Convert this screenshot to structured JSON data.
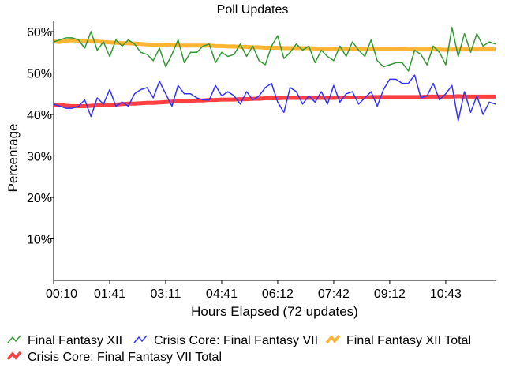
{
  "chart_data": {
    "type": "line",
    "title": "Poll Updates",
    "xlabel": "Hours Elapsed (72 updates)",
    "ylabel": "Percentage",
    "ylim": [
      0,
      65
    ],
    "yticks": [
      10,
      20,
      30,
      40,
      50,
      60
    ],
    "ytick_labels": [
      "10%",
      "20%",
      "30%",
      "40%",
      "50%",
      "60%"
    ],
    "xticks": [
      0,
      9,
      18,
      27,
      36,
      45,
      54,
      63
    ],
    "xtick_labels": [
      "00:10",
      "01:41",
      "03:11",
      "04:41",
      "06:12",
      "07:42",
      "09:12",
      "10:43"
    ],
    "n_points": 72,
    "legend_position": "bottom",
    "series": [
      {
        "name": "Final Fantasy XII",
        "color": "#339933",
        "width": 1.5,
        "values": [
          57.5,
          58,
          58.5,
          58.5,
          58,
          56,
          60,
          55.5,
          57.5,
          54,
          58,
          56.5,
          58,
          57,
          55,
          54.5,
          53,
          56,
          51.5,
          54.5,
          58,
          52.5,
          55,
          55,
          56.5,
          57,
          52.5,
          55,
          54,
          54.5,
          57,
          54,
          56.5,
          53,
          52,
          56.5,
          59,
          53.5,
          55,
          57,
          55.5,
          56.5,
          52.5,
          55.5,
          54,
          53,
          56.5,
          54,
          57.5,
          55.5,
          54,
          58,
          53,
          51.5,
          52,
          52.5,
          52.5,
          50.5,
          55.5,
          54.5,
          52,
          56.5,
          55,
          52,
          61,
          54,
          59.5,
          55,
          59.5,
          56.5,
          57.5,
          57
        ]
      },
      {
        "name": "Crisis Core: Final Fantasy VII",
        "color": "#3333ff",
        "width": 1.5,
        "values": [
          42.5,
          42,
          41.5,
          41.5,
          42,
          43.5,
          39.5,
          44,
          42.5,
          46,
          42,
          43,
          42,
          45,
          46,
          46.5,
          44,
          48,
          45,
          42,
          47,
          45,
          45,
          44,
          43.5,
          43.5,
          47,
          44.5,
          45.5,
          44.5,
          42.5,
          45.5,
          43.5,
          44.5,
          46.5,
          47.5,
          43,
          40.5,
          46.5,
          45.5,
          42.5,
          44.5,
          43,
          45.5,
          42.5,
          47,
          43,
          45,
          45.5,
          42.5,
          44,
          45.5,
          42,
          46,
          48.5,
          48.5,
          47.5,
          47.5,
          49.5,
          44,
          44.5,
          47.5,
          43.5,
          45,
          47,
          38.5,
          45.5,
          40.5,
          44.5,
          40,
          43,
          42.5
        ]
      },
      {
        "name": "Final Fantasy XII Total",
        "color": "#ffb433",
        "width": 5,
        "values": [
          57.6,
          57.5,
          57.8,
          57.9,
          57.8,
          57.7,
          57.6,
          57.6,
          57.5,
          57.4,
          57.3,
          57.2,
          57.2,
          57.1,
          57.0,
          56.9,
          56.8,
          56.8,
          56.7,
          56.7,
          56.6,
          56.6,
          56.6,
          56.6,
          56.6,
          56.6,
          56.5,
          56.5,
          56.4,
          56.4,
          56.3,
          56.3,
          56.2,
          56.2,
          56.1,
          56.1,
          56.1,
          56.0,
          56.0,
          56.0,
          56.0,
          56.0,
          55.9,
          55.9,
          55.9,
          55.9,
          55.9,
          55.9,
          55.9,
          55.9,
          55.8,
          55.8,
          55.8,
          55.8,
          55.8,
          55.8,
          55.8,
          55.7,
          55.7,
          55.7,
          55.7,
          55.7,
          55.7,
          55.6,
          55.7,
          55.7,
          55.7,
          55.7,
          55.7,
          55.7,
          55.7,
          55.7
        ]
      },
      {
        "name": "Crisis Core: Final Fantasy VII Total",
        "color": "#ff4040",
        "width": 5,
        "values": [
          42.3,
          42.4,
          42.1,
          42.0,
          42.0,
          42.0,
          42.1,
          42.2,
          42.3,
          42.3,
          42.4,
          42.5,
          42.6,
          42.6,
          42.7,
          42.8,
          42.8,
          42.9,
          43.0,
          43.1,
          43.2,
          43.3,
          43.3,
          43.4,
          43.4,
          43.5,
          43.5,
          43.6,
          43.6,
          43.6,
          43.7,
          43.7,
          43.8,
          43.8,
          43.9,
          43.9,
          43.9,
          44.0,
          44.0,
          44.0,
          44.0,
          44.0,
          44.0,
          44.0,
          44.0,
          44.0,
          44.1,
          44.1,
          44.1,
          44.1,
          44.1,
          44.2,
          44.2,
          44.2,
          44.2,
          44.2,
          44.2,
          44.2,
          44.2,
          44.2,
          44.3,
          44.3,
          44.3,
          44.3,
          44.3,
          44.4,
          44.3,
          44.3,
          44.3,
          44.3,
          44.3,
          44.3
        ]
      }
    ]
  }
}
